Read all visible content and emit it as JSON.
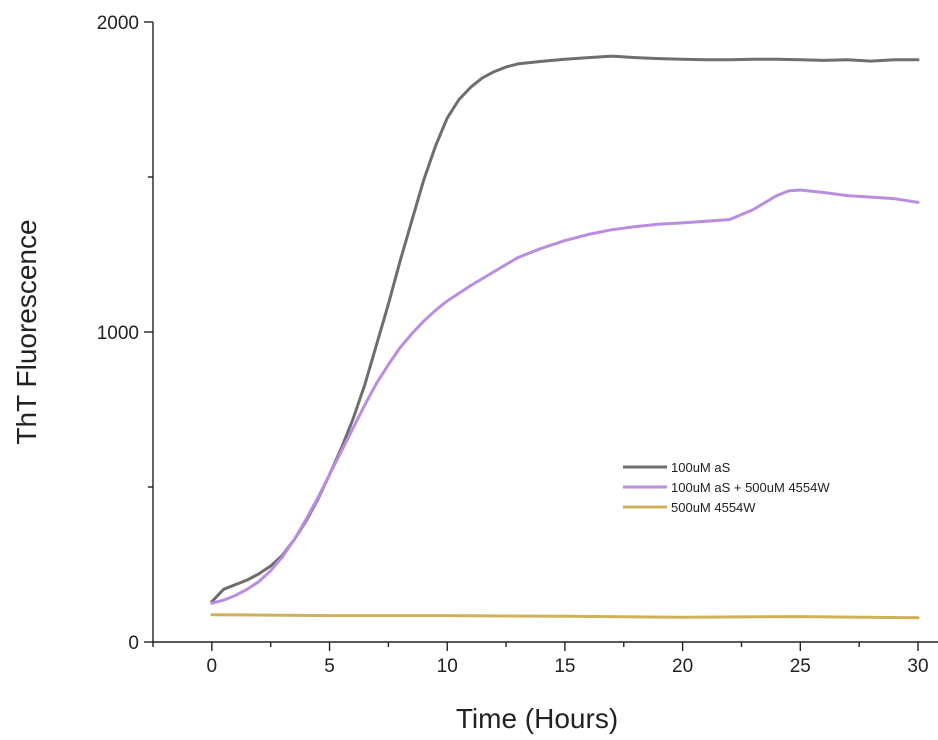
{
  "chart_data": {
    "type": "line",
    "title": "",
    "xlabel": "Time (Hours)",
    "ylabel": "ThT Fluorescence",
    "xlim": [
      -2.5,
      30
    ],
    "ylim": [
      0,
      2000
    ],
    "x_major_ticks": [
      0,
      5,
      10,
      15,
      20,
      25,
      30
    ],
    "x_minor_ticks": [
      -2.5,
      2.5,
      7.5,
      12.5,
      17.5,
      22.5,
      27.5
    ],
    "y_major_ticks": [
      0,
      1000,
      2000
    ],
    "y_minor_ticks": [
      500,
      1500
    ],
    "grid": false,
    "legend_position": "right-center",
    "series": [
      {
        "name": "100uM aS",
        "color": "#6e6e6e",
        "x": [
          0,
          0.5,
          1,
          1.5,
          2,
          2.5,
          3,
          3.5,
          4,
          4.5,
          5,
          5.5,
          6,
          6.5,
          7,
          7.5,
          8,
          8.5,
          9,
          9.5,
          10,
          10.5,
          11,
          11.5,
          12,
          12.5,
          13,
          14,
          15,
          16,
          17,
          18,
          19,
          20,
          21,
          22,
          23,
          24,
          25,
          26,
          27,
          28,
          29,
          30
        ],
        "y": [
          130,
          170,
          185,
          200,
          220,
          245,
          280,
          330,
          390,
          460,
          540,
          625,
          720,
          830,
          960,
          1090,
          1230,
          1360,
          1490,
          1600,
          1690,
          1750,
          1790,
          1820,
          1840,
          1855,
          1865,
          1873,
          1880,
          1885,
          1890,
          1885,
          1882,
          1880,
          1878,
          1878,
          1880,
          1880,
          1878,
          1876,
          1878,
          1874,
          1878,
          1878
        ]
      },
      {
        "name": "100uM aS + 500uM 4554W",
        "color": "#b98ee0",
        "x": [
          0,
          0.5,
          1,
          1.5,
          2,
          2.5,
          3,
          3.5,
          4,
          4.5,
          5,
          5.5,
          6,
          6.5,
          7,
          7.5,
          8,
          8.5,
          9,
          9.5,
          10,
          11,
          12,
          13,
          14,
          15,
          16,
          17,
          18,
          19,
          20,
          21,
          22,
          23,
          24,
          24.5,
          25,
          26,
          27,
          28,
          29,
          30
        ],
        "y": [
          125,
          135,
          150,
          170,
          195,
          230,
          275,
          330,
          395,
          465,
          540,
          615,
          690,
          765,
          835,
          895,
          950,
          995,
          1035,
          1070,
          1100,
          1150,
          1195,
          1240,
          1270,
          1295,
          1315,
          1330,
          1340,
          1348,
          1352,
          1357,
          1363,
          1395,
          1440,
          1455,
          1458,
          1450,
          1440,
          1435,
          1430,
          1418
        ]
      },
      {
        "name": "500uM 4554W",
        "color": "#cfb15a",
        "x": [
          0,
          5,
          10,
          15,
          20,
          25,
          30
        ],
        "y": [
          88,
          85,
          85,
          83,
          80,
          82,
          78
        ]
      }
    ]
  }
}
